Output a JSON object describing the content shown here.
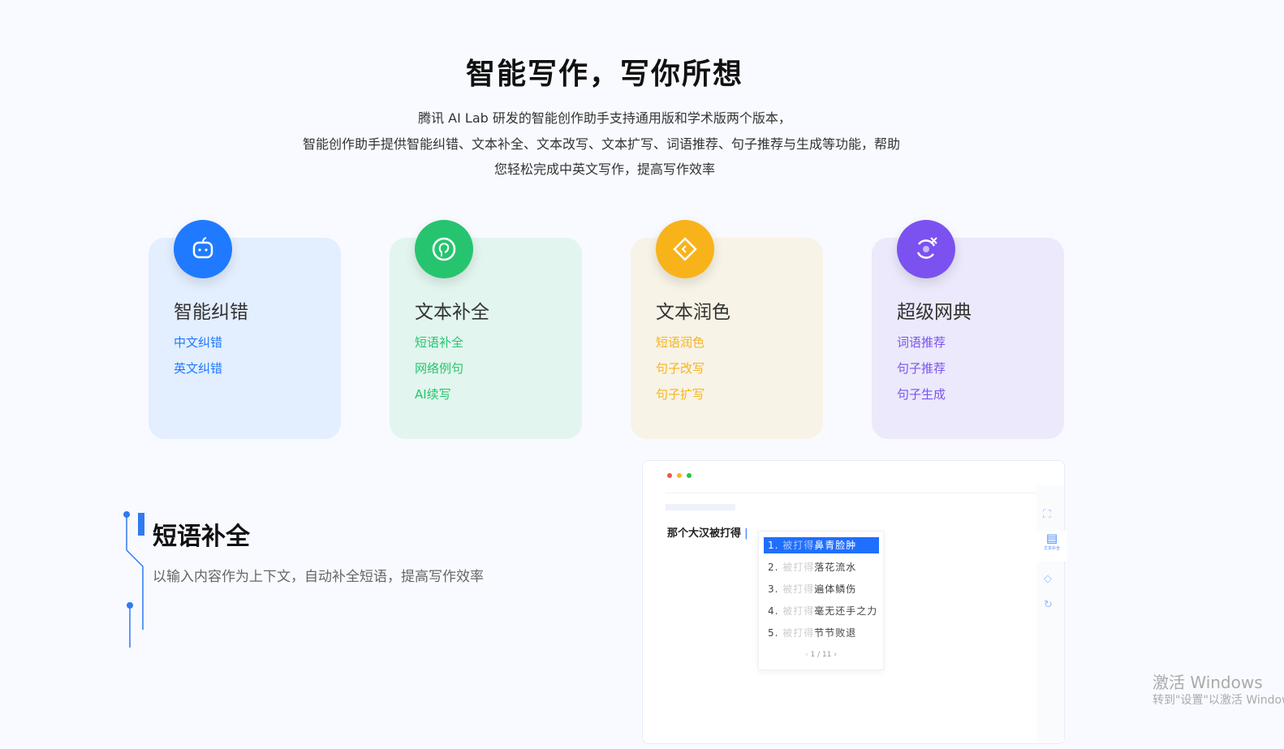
{
  "header": {
    "title": "智能写作，写你所想",
    "lines": [
      "腾讯 AI Lab 研发的智能创作助手支持通用版和学术版两个版本，",
      "智能创作助手提供智能纠错、文本补全、文本改写、文本扩写、词语推荐、句子推荐与生成等功能，帮助",
      "您轻松完成中英文写作，提高写作效率"
    ]
  },
  "cards": [
    {
      "title": "智能纠错",
      "icon": "robot-face-icon",
      "color": "#1f7aff",
      "bg": "#e3eefe",
      "items": [
        "中文纠错",
        "英文纠错"
      ]
    },
    {
      "title": "文本补全",
      "icon": "head-profile-icon",
      "color": "#27c46f",
      "bg": "#e2f5ee",
      "items": [
        "短语补全",
        "网络例句",
        "AI续写"
      ]
    },
    {
      "title": "文本润色",
      "icon": "diamond-tag-icon",
      "color": "#f8b31b",
      "bg": "#f7f3e6",
      "items": [
        "短语润色",
        "句子改写",
        "句子扩写"
      ]
    },
    {
      "title": "超级网典",
      "icon": "refresh-cross-icon",
      "color": "#7b52f0",
      "bg": "#ebe9fb",
      "items": [
        "词语推荐",
        "句子推荐",
        "句子生成"
      ]
    }
  ],
  "feature": {
    "title": "短语补全",
    "desc": "以输入内容作为上下文，自动补全短语，提高写作效率"
  },
  "demo": {
    "input": "那个大汉被打得",
    "prefix": "被打得",
    "suggestions": [
      {
        "n": "1.",
        "s": "鼻青脸肿"
      },
      {
        "n": "2.",
        "s": "落花流水"
      },
      {
        "n": "3.",
        "s": "遍体鳞伤"
      },
      {
        "n": "4.",
        "s": "毫无还手之力"
      },
      {
        "n": "5.",
        "s": "节节败退"
      }
    ],
    "page": "1 / 11",
    "side_label": "文本补全"
  },
  "watermark": {
    "line1": "激活 Windows",
    "line2": "转到\"设置\"以激活 Windows。"
  }
}
